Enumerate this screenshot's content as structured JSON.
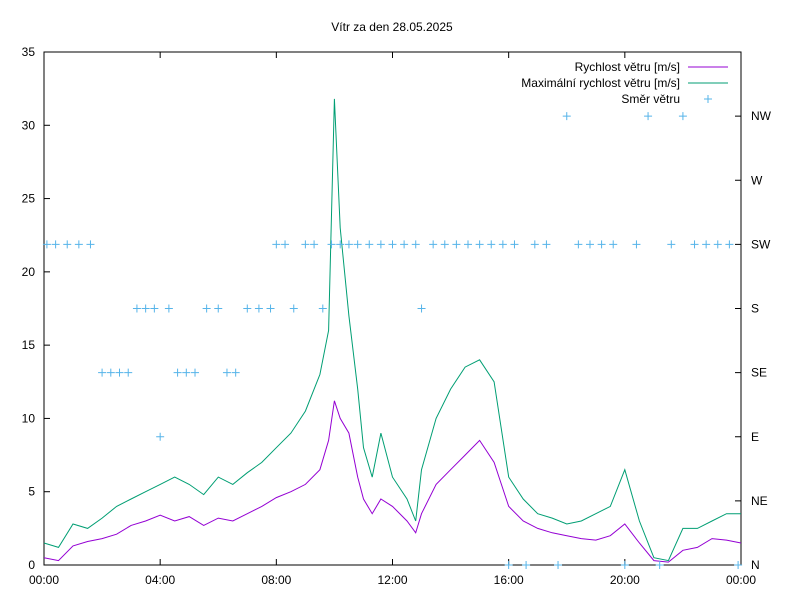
{
  "chart_data": {
    "type": "line",
    "title": "Vítr za den 28.05.2025",
    "xlim_hours": [
      0,
      24
    ],
    "ylim": [
      0,
      35
    ],
    "y_ticks": [
      0,
      5,
      10,
      15,
      20,
      25,
      30,
      35
    ],
    "x_ticks": [
      "00:00",
      "04:00",
      "08:00",
      "12:00",
      "16:00",
      "20:00",
      "00:00"
    ],
    "y2_ticks": [
      "N",
      "NE",
      "E",
      "SE",
      "S",
      "SW",
      "W",
      "NW"
    ],
    "grid": false,
    "legend_position": "top-right",
    "series": [
      {
        "name": "Rychlost větru [m/s]",
        "color": "#9400d3",
        "x_hours": [
          0,
          0.5,
          1,
          1.5,
          2,
          2.5,
          3,
          3.5,
          4,
          4.5,
          5,
          5.5,
          6,
          6.5,
          7,
          7.5,
          8,
          8.5,
          9,
          9.5,
          9.8,
          10,
          10.2,
          10.5,
          10.8,
          11,
          11.3,
          11.6,
          12,
          12.5,
          12.8,
          13,
          13.5,
          14,
          14.5,
          15,
          15.5,
          16,
          16.5,
          17,
          17.5,
          18,
          18.5,
          19,
          19.5,
          20,
          20.5,
          21,
          21.5,
          22,
          22.5,
          23,
          23.5,
          24
        ],
        "values": [
          0.5,
          0.3,
          1.3,
          1.6,
          1.8,
          2.1,
          2.7,
          3.0,
          3.4,
          3.0,
          3.3,
          2.7,
          3.2,
          3.0,
          3.5,
          4.0,
          4.6,
          5.0,
          5.5,
          6.5,
          8.5,
          11.2,
          10.0,
          9.0,
          6.0,
          4.5,
          3.5,
          4.5,
          4.0,
          3.0,
          2.2,
          3.5,
          5.5,
          6.5,
          7.5,
          8.5,
          7.0,
          4.0,
          3.0,
          2.5,
          2.2,
          2.0,
          1.8,
          1.7,
          2.0,
          2.8,
          1.5,
          0.3,
          0.2,
          1.0,
          1.2,
          1.8,
          1.7,
          1.5
        ]
      },
      {
        "name": "Maximální rychlost větru [m/s]",
        "color": "#009e73",
        "x_hours": [
          0,
          0.5,
          1,
          1.5,
          2,
          2.5,
          3,
          3.5,
          4,
          4.5,
          5,
          5.5,
          6,
          6.5,
          7,
          7.5,
          8,
          8.5,
          9,
          9.5,
          9.8,
          10,
          10.2,
          10.5,
          10.8,
          11,
          11.3,
          11.6,
          12,
          12.5,
          12.8,
          13,
          13.5,
          14,
          14.5,
          15,
          15.5,
          16,
          16.5,
          17,
          17.5,
          18,
          18.5,
          19,
          19.5,
          20,
          20.5,
          21,
          21.5,
          22,
          22.5,
          23,
          23.5,
          24
        ],
        "values": [
          1.5,
          1.2,
          2.8,
          2.5,
          3.2,
          4.0,
          4.5,
          5.0,
          5.5,
          6.0,
          5.5,
          4.8,
          6.0,
          5.5,
          6.3,
          7.0,
          8.0,
          9.0,
          10.5,
          13.0,
          16.0,
          31.8,
          23.0,
          17.0,
          12.0,
          8.0,
          6.0,
          9.0,
          6.0,
          4.5,
          3.0,
          6.5,
          10.0,
          12.0,
          13.5,
          14.0,
          12.5,
          6.0,
          4.5,
          3.5,
          3.2,
          2.8,
          3.0,
          3.5,
          4.0,
          6.5,
          3.0,
          0.5,
          0.3,
          2.5,
          2.5,
          3.0,
          3.5,
          3.5
        ]
      },
      {
        "name": "Směr větru",
        "color": "#56b4e9",
        "marker": "+",
        "axis": "y2",
        "x_hours": [
          0.1,
          0.4,
          0.8,
          1.2,
          1.6,
          2.0,
          2.3,
          2.6,
          2.9,
          3.2,
          3.5,
          3.8,
          4.0,
          4.3,
          4.6,
          4.9,
          5.2,
          5.6,
          6.0,
          6.3,
          6.6,
          7.0,
          7.4,
          7.8,
          8.0,
          8.3,
          8.6,
          9.0,
          9.3,
          9.6,
          9.9,
          10.2,
          10.5,
          10.8,
          11.2,
          11.6,
          12.0,
          12.4,
          12.8,
          13.0,
          13.4,
          13.8,
          14.2,
          14.6,
          15.0,
          15.4,
          15.8,
          16.0,
          16.2,
          16.6,
          16.9,
          17.3,
          17.7,
          18.0,
          18.4,
          18.8,
          19.2,
          19.6,
          20.0,
          20.4,
          20.8,
          21.2,
          21.6,
          22.0,
          22.4,
          22.8,
          23.2,
          23.6,
          23.9
        ],
        "values": [
          "SW",
          "SW",
          "SW",
          "SW",
          "SW",
          "SE",
          "SE",
          "SE",
          "SE",
          "S",
          "S",
          "S",
          "E",
          "S",
          "SE",
          "SE",
          "SE",
          "S",
          "S",
          "SE",
          "SE",
          "S",
          "S",
          "S",
          "SW",
          "SW",
          "S",
          "SW",
          "SW",
          "S",
          "SW",
          "SW",
          "SW",
          "SW",
          "SW",
          "SW",
          "SW",
          "SW",
          "SW",
          "S",
          "SW",
          "SW",
          "SW",
          "SW",
          "SW",
          "SW",
          "SW",
          "N",
          "SW",
          "N",
          "SW",
          "SW",
          "N",
          "NW",
          "SW",
          "SW",
          "SW",
          "SW",
          "N",
          "SW",
          "NW",
          "N",
          "SW",
          "NW",
          "SW",
          "SW",
          "SW",
          "SW",
          "N"
        ]
      }
    ]
  }
}
